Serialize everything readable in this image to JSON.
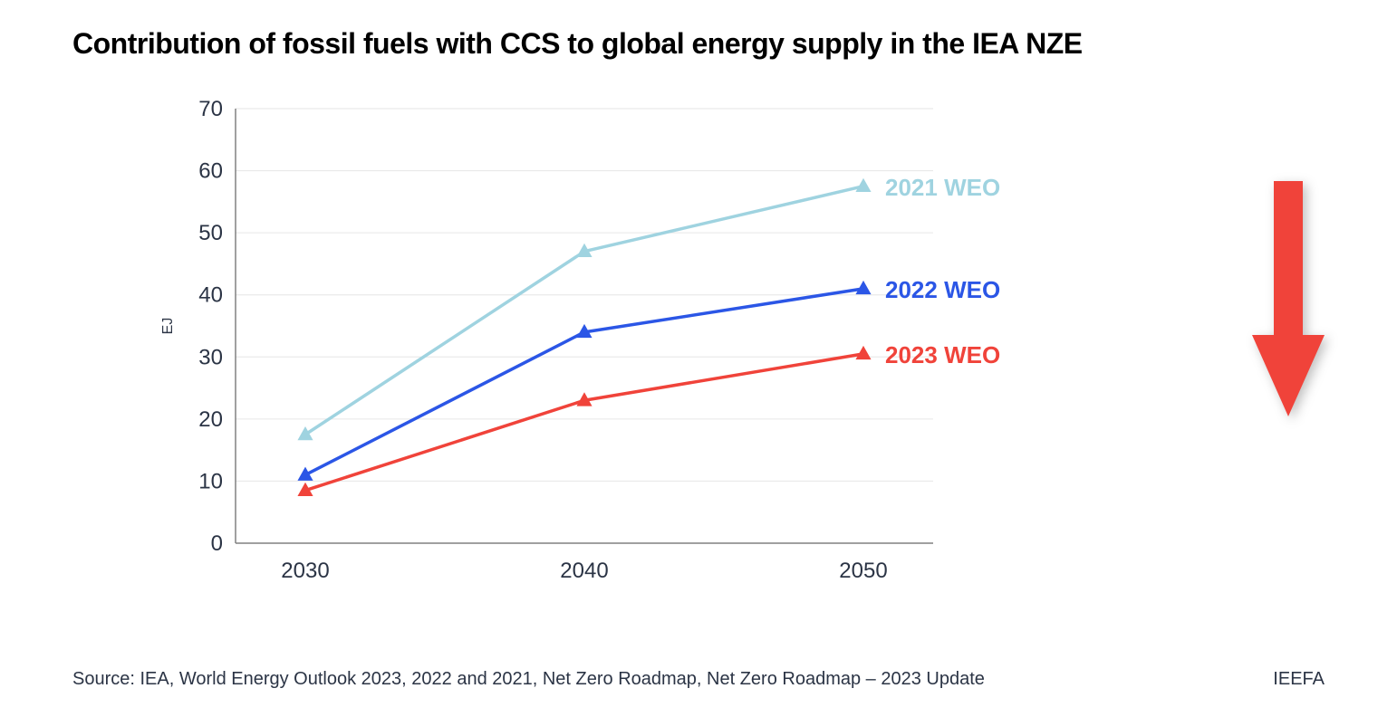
{
  "title": "Contribution of fossil fuels with CCS to global energy supply in the IEA NZE",
  "footer": "Source: IEA, World Energy Outlook 2023, 2022 and 2021, Net Zero Roadmap, Net Zero Roadmap – 2023 Update",
  "attribution": "IEEFA",
  "chart": {
    "type": "line",
    "ylabel": "EJ",
    "ylabel_fontsize": 16,
    "tick_fontsize": 24,
    "tick_color": "#2b3445",
    "background_color": "#ffffff",
    "plot_border_color": "#808080",
    "grid_color": "#e6e6e6",
    "grid_width": 1,
    "line_width": 3.5,
    "marker_size": 9,
    "x_categories": [
      "2030",
      "2040",
      "2050"
    ],
    "ylim": [
      0,
      70
    ],
    "yticks": [
      0,
      10,
      20,
      30,
      40,
      50,
      60,
      70
    ],
    "series": [
      {
        "name": "2021 WEO",
        "color": "#9fd3e0",
        "values": [
          17.5,
          47,
          57.5
        ]
      },
      {
        "name": "2022 WEO",
        "color": "#2b56e6",
        "values": [
          11,
          34,
          41
        ]
      },
      {
        "name": "2023 WEO",
        "color": "#f0433a",
        "values": [
          8.5,
          23,
          30.5
        ]
      }
    ],
    "series_label_fontsize": 26,
    "series_label_weight": 800
  },
  "arrow": {
    "color": "#f0433a",
    "shadow": "rgba(0,0,0,0.25)"
  }
}
